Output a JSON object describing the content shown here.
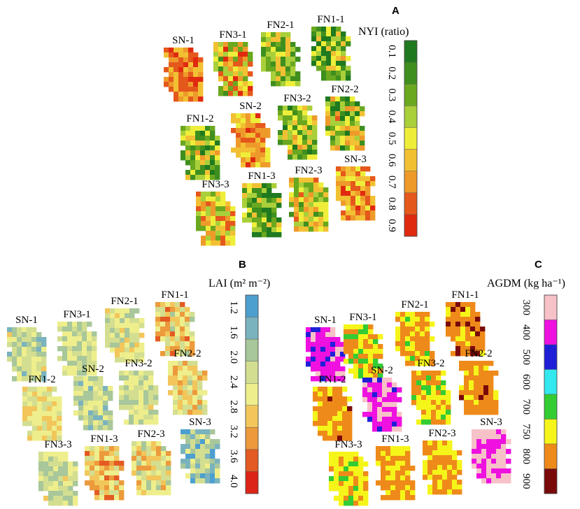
{
  "chart_data": [
    {
      "type": "heatmap",
      "panel": "A",
      "legend": {
        "title": "NYI (ratio)",
        "ticks": [
          "0.1",
          "0.2",
          "0.3",
          "0.4",
          "0.5",
          "0.6",
          "0.7",
          "0.8",
          "0.9"
        ],
        "colors": [
          "#1f7a1f",
          "#3f8f1f",
          "#6aa81f",
          "#a9cf3a",
          "#eeee3a",
          "#f2c033",
          "#ee9a2a",
          "#e5581c",
          "#e02a10"
        ]
      },
      "plots": [
        {
          "label": "SN-1",
          "mean": 0.72,
          "spread": 0.18
        },
        {
          "label": "FN3-1",
          "mean": 0.55,
          "spread": 0.35
        },
        {
          "label": "FN2-1",
          "mean": 0.4,
          "spread": 0.25
        },
        {
          "label": "FN1-1",
          "mean": 0.36,
          "spread": 0.3
        },
        {
          "label": "FN1-2",
          "mean": 0.4,
          "spread": 0.3
        },
        {
          "label": "SN-2",
          "mean": 0.68,
          "spread": 0.2
        },
        {
          "label": "FN3-2",
          "mean": 0.42,
          "spread": 0.3
        },
        {
          "label": "FN2-2",
          "mean": 0.42,
          "spread": 0.35
        },
        {
          "label": "FN3-3",
          "mean": 0.55,
          "spread": 0.3
        },
        {
          "label": "FN1-3",
          "mean": 0.34,
          "spread": 0.28
        },
        {
          "label": "FN2-3",
          "mean": 0.5,
          "spread": 0.3
        },
        {
          "label": "SN-3",
          "mean": 0.7,
          "spread": 0.2
        }
      ]
    },
    {
      "type": "heatmap",
      "panel": "B",
      "legend": {
        "title": "LAI (m² m⁻²)",
        "ticks": [
          "1.2",
          "1.6",
          "2.0",
          "2.4",
          "2.8",
          "3.2",
          "3.6",
          "4.0"
        ],
        "colors": [
          "#4d9fd0",
          "#7ab3be",
          "#a8c79a",
          "#d3de91",
          "#eeee8c",
          "#f2c65a",
          "#ec9a3c",
          "#e35a22",
          "#dd2418"
        ]
      },
      "plots": [
        {
          "label": "SN-1",
          "mean": 2.2,
          "spread": 0.6
        },
        {
          "label": "FN3-1",
          "mean": 2.3,
          "spread": 0.5
        },
        {
          "label": "FN2-1",
          "mean": 2.4,
          "spread": 0.5
        },
        {
          "label": "FN1-1",
          "mean": 2.8,
          "spread": 0.8
        },
        {
          "label": "FN1-2",
          "mean": 2.6,
          "spread": 0.5
        },
        {
          "label": "SN-2",
          "mean": 2.2,
          "spread": 0.6
        },
        {
          "label": "FN3-2",
          "mean": 2.3,
          "spread": 0.5
        },
        {
          "label": "FN2-2",
          "mean": 2.7,
          "spread": 0.7
        },
        {
          "label": "FN3-3",
          "mean": 2.3,
          "spread": 0.5
        },
        {
          "label": "FN1-3",
          "mean": 2.9,
          "spread": 0.8
        },
        {
          "label": "FN2-3",
          "mean": 2.6,
          "spread": 0.7
        },
        {
          "label": "SN-3",
          "mean": 1.9,
          "spread": 0.7
        }
      ]
    },
    {
      "type": "heatmap",
      "panel": "C",
      "legend": {
        "title": "AGDM (kg ha⁻¹)",
        "ticks": [
          "300",
          "400",
          "500",
          "600",
          "700",
          "750",
          "800",
          "900"
        ],
        "colors": [
          "#f7c1c8",
          "#ee11e0",
          "#1f1fd8",
          "#33e8ee",
          "#33cc33",
          "#f5f51a",
          "#ee8a1a",
          "#7a0a0a"
        ]
      },
      "plots": [
        {
          "label": "SN-1",
          "mean": 400,
          "spread": 80
        },
        {
          "label": "FN3-1",
          "mean": 760,
          "spread": 60
        },
        {
          "label": "FN2-1",
          "mean": 780,
          "spread": 60
        },
        {
          "label": "FN1-1",
          "mean": 820,
          "spread": 60
        },
        {
          "label": "FN1-2",
          "mean": 810,
          "spread": 50
        },
        {
          "label": "SN-2",
          "mean": 380,
          "spread": 90
        },
        {
          "label": "FN3-2",
          "mean": 760,
          "spread": 50
        },
        {
          "label": "FN2-2",
          "mean": 810,
          "spread": 50
        },
        {
          "label": "FN3-3",
          "mean": 755,
          "spread": 40
        },
        {
          "label": "FN1-3",
          "mean": 790,
          "spread": 50
        },
        {
          "label": "FN2-3",
          "mean": 790,
          "spread": 60
        },
        {
          "label": "SN-3",
          "mean": 330,
          "spread": 60
        }
      ]
    }
  ]
}
